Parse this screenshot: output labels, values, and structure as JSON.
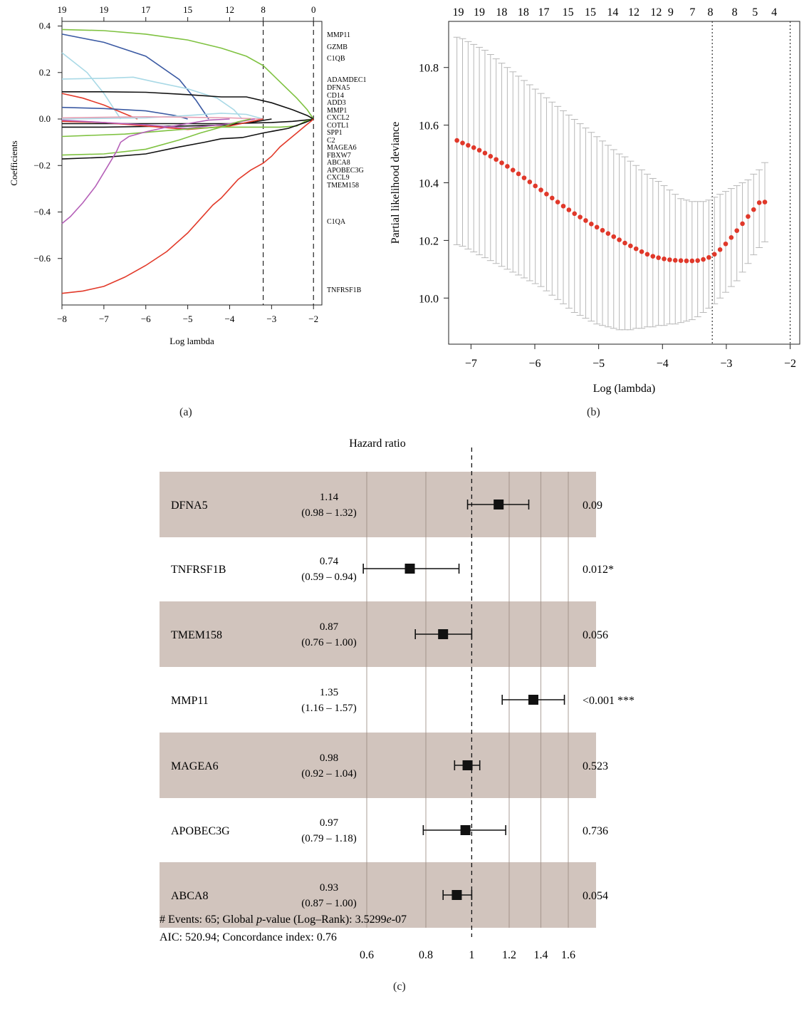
{
  "panel_labels": {
    "a": "(a)",
    "b": "(b)",
    "c": "(c)"
  },
  "colors": {
    "green": "#7fc241",
    "navy": "#3b5aa3",
    "lightblue": "#a9d9e6",
    "black": "#111111",
    "red": "#e23a2a",
    "purple": "#b560b8",
    "pink": "#e8a0b4",
    "cv_point": "#e0382a",
    "cv_bar": "#b8b8b8",
    "forest_band": "#d1c4bd"
  },
  "chart_data": [
    {
      "type": "line",
      "panel": "a",
      "xlabel": "Log lambda",
      "ylabel": "Coefficients",
      "xlim": [
        -8,
        -1.8
      ],
      "ylim": [
        -0.8,
        0.42
      ],
      "x_ticks": [
        "-8",
        "-7",
        "-6",
        "-5",
        "-4",
        "-3",
        "-2"
      ],
      "y_ticks": [
        "0.4",
        "0.2",
        "0.0",
        "-0.2",
        "-0.4",
        "-0.6"
      ],
      "top_tick_labels": [
        "19",
        "19",
        "17",
        "15",
        "12",
        "8",
        "0"
      ],
      "top_tick_x": [
        -8,
        -7,
        -6,
        -5,
        -4,
        -3.2,
        -2
      ],
      "vlines": [
        -3.2,
        -2
      ],
      "end_labels": [
        "MMP11",
        "GZMB",
        "C1QB",
        "ADAMDEC1",
        "DFNA5",
        "CD14",
        "ADD3",
        "MMP1",
        "CXCL2",
        "COTL1",
        "SPP1",
        "C2",
        "MAGEA6",
        "FBXW7",
        "ABCA8",
        "APOBEC3G",
        "CXCL9",
        "TMEM158",
        "C1QA",
        "TNFRSF1B"
      ],
      "series": [
        {
          "color_key": "green",
          "x": [
            -8,
            -7,
            -6,
            -5,
            -4.2,
            -3.6,
            -3.2,
            -2.8,
            -2.4,
            -2.15,
            -2
          ],
          "values": [
            0.385,
            0.38,
            0.365,
            0.34,
            0.305,
            0.27,
            0.23,
            0.16,
            0.09,
            0.04,
            0.0
          ]
        },
        {
          "color_key": "navy",
          "x": [
            -8,
            -7,
            -6,
            -5.2,
            -4.8,
            -4.5
          ],
          "values": [
            0.365,
            0.33,
            0.27,
            0.17,
            0.08,
            0.0
          ]
        },
        {
          "color_key": "lightblue",
          "x": [
            -8,
            -7.4,
            -7,
            -6.6
          ],
          "values": [
            0.285,
            0.2,
            0.11,
            0.0
          ]
        },
        {
          "color_key": "lightblue",
          "x": [
            -8,
            -7,
            -6.3,
            -5.8,
            -5,
            -4.3,
            -3.9,
            -3.7
          ],
          "values": [
            0.172,
            0.175,
            0.18,
            0.16,
            0.13,
            0.09,
            0.04,
            0.0
          ]
        },
        {
          "color_key": "black",
          "x": [
            -8,
            -7,
            -6,
            -5,
            -4.2,
            -3.6,
            -3.0,
            -2.5,
            -2.15,
            -2
          ],
          "values": [
            0.117,
            0.117,
            0.115,
            0.105,
            0.095,
            0.095,
            0.07,
            0.04,
            0.015,
            0.0
          ]
        },
        {
          "color_key": "red",
          "x": [
            -8,
            -7.5,
            -7,
            -6.6,
            -6.2
          ],
          "values": [
            0.11,
            0.09,
            0.06,
            0.03,
            0.0
          ]
        },
        {
          "color_key": "navy",
          "x": [
            -8,
            -7,
            -6,
            -5.3,
            -5
          ],
          "values": [
            0.05,
            0.045,
            0.035,
            0.015,
            0.0
          ]
        },
        {
          "color_key": "lightblue",
          "x": [
            -8,
            -6,
            -5,
            -4.2,
            -3.6,
            -3.2
          ],
          "values": [
            0.0,
            0.005,
            0.015,
            0.025,
            0.02,
            0.0
          ]
        },
        {
          "color_key": "pink",
          "x": [
            -8,
            -6,
            -4,
            -3.2
          ],
          "values": [
            0.005,
            0.01,
            0.005,
            0.0
          ]
        },
        {
          "color_key": "black",
          "x": [
            -8,
            -6,
            -4,
            -3,
            -2.5,
            -2.2,
            -2
          ],
          "values": [
            -0.02,
            -0.02,
            -0.02,
            -0.015,
            -0.01,
            -0.005,
            0.0
          ]
        },
        {
          "color_key": "black",
          "x": [
            -8,
            -7,
            -6,
            -5,
            -4,
            -3.4,
            -3
          ],
          "values": [
            -0.035,
            -0.035,
            -0.032,
            -0.03,
            -0.025,
            -0.012,
            0.0
          ]
        },
        {
          "color_key": "red",
          "x": [
            -8,
            -7,
            -6,
            -5,
            -4,
            -3.2
          ],
          "values": [
            -0.01,
            -0.015,
            -0.03,
            -0.045,
            -0.03,
            0.0
          ]
        },
        {
          "color_key": "purple",
          "x": [
            -8,
            -7,
            -6,
            -5,
            -4,
            -3.4
          ],
          "values": [
            -0.005,
            -0.015,
            -0.025,
            -0.04,
            -0.02,
            0.0
          ]
        },
        {
          "color_key": "green",
          "x": [
            -8,
            -6.5,
            -5.5,
            -4.8,
            -4.2,
            -3.6,
            -3.2,
            -2.8,
            -2.4,
            -2.2,
            -2
          ],
          "values": [
            -0.075,
            -0.065,
            -0.05,
            -0.04,
            -0.035,
            -0.035,
            -0.035,
            -0.035,
            -0.03,
            -0.01,
            0.0
          ]
        },
        {
          "color_key": "green",
          "x": [
            -8,
            -7,
            -6,
            -5.2,
            -4.7,
            -4.2,
            -3.8,
            -3.5
          ],
          "values": [
            -0.155,
            -0.15,
            -0.13,
            -0.09,
            -0.06,
            -0.035,
            -0.012,
            0.0
          ]
        },
        {
          "color_key": "black",
          "x": [
            -8,
            -7,
            -6,
            -5.2,
            -4.6,
            -4.2,
            -3.7,
            -3.2,
            -2.6,
            -2.2,
            -2
          ],
          "values": [
            -0.172,
            -0.165,
            -0.15,
            -0.12,
            -0.1,
            -0.085,
            -0.08,
            -0.06,
            -0.04,
            -0.015,
            0.0
          ]
        },
        {
          "color_key": "purple",
          "x": [
            -8,
            -7.8,
            -7.5,
            -7.2,
            -6.9,
            -6.7,
            -6.6,
            -6.4,
            -6.0,
            -5.5,
            -5.0,
            -4.5,
            -4.0
          ],
          "values": [
            -0.45,
            -0.42,
            -0.36,
            -0.29,
            -0.2,
            -0.14,
            -0.1,
            -0.075,
            -0.055,
            -0.035,
            -0.02,
            -0.005,
            0.0
          ]
        },
        {
          "color_key": "red",
          "x": [
            -8,
            -7.5,
            -7,
            -6.5,
            -6,
            -5.5,
            -5,
            -4.7,
            -4.4,
            -4.2,
            -4.0,
            -3.8,
            -3.5,
            -3.2,
            -3.0,
            -2.8,
            -2.6,
            -2.4,
            -2.2,
            -2.05,
            -2
          ],
          "values": [
            -0.75,
            -0.74,
            -0.72,
            -0.68,
            -0.63,
            -0.57,
            -0.49,
            -0.43,
            -0.37,
            -0.34,
            -0.3,
            -0.26,
            -0.22,
            -0.19,
            -0.16,
            -0.12,
            -0.09,
            -0.06,
            -0.03,
            -0.008,
            0.0
          ]
        }
      ]
    },
    {
      "type": "scatter",
      "panel": "b",
      "xlabel": "Log (lambda)",
      "ylabel": "Partial likelihood deviance",
      "xlim": [
        -7.35,
        -1.85
      ],
      "ylim": [
        9.84,
        10.96
      ],
      "x_ticks": [
        "−7",
        "−6",
        "−5",
        "−4",
        "−3",
        "−2"
      ],
      "y_ticks": [
        "10.0",
        "10.2",
        "10.4",
        "10.6",
        "10.8"
      ],
      "top_tick_labels": [
        "19",
        "19",
        "18",
        "18",
        "17",
        "15",
        "15",
        "14",
        "12",
        "12",
        "9",
        "7",
        "8",
        "8",
        "5",
        "4"
      ],
      "top_tick_x": [
        -7.2,
        -6.87,
        -6.52,
        -6.18,
        -5.86,
        -5.48,
        -5.13,
        -4.78,
        -4.45,
        -4.1,
        -3.87,
        -3.53,
        -3.25,
        -2.87,
        -2.55,
        -2.25
      ],
      "vlines": [
        -3.22,
        -2.0
      ],
      "x_start": -7.22,
      "x_step": 0.0877,
      "center": [
        10.547,
        10.538,
        10.53,
        10.522,
        10.513,
        10.503,
        10.492,
        10.481,
        10.469,
        10.457,
        10.444,
        10.431,
        10.417,
        10.403,
        10.389,
        10.375,
        10.361,
        10.347,
        10.333,
        10.319,
        10.306,
        10.293,
        10.281,
        10.269,
        10.257,
        10.246,
        10.235,
        10.224,
        10.213,
        10.202,
        10.191,
        10.181,
        10.171,
        10.161,
        10.152,
        10.145,
        10.14,
        10.136,
        10.133,
        10.131,
        10.13,
        10.129,
        10.129,
        10.13,
        10.134,
        10.141,
        10.152,
        10.168,
        10.188,
        10.21,
        10.234,
        10.258,
        10.283,
        10.307,
        10.331,
        10.333
      ],
      "upper": [
        10.905,
        10.9,
        10.89,
        10.88,
        10.87,
        10.86,
        10.845,
        10.83,
        10.815,
        10.8,
        10.785,
        10.77,
        10.755,
        10.74,
        10.725,
        10.71,
        10.695,
        10.68,
        10.665,
        10.65,
        10.635,
        10.62,
        10.605,
        10.59,
        10.575,
        10.56,
        10.545,
        10.53,
        10.515,
        10.5,
        10.49,
        10.475,
        10.46,
        10.445,
        10.43,
        10.415,
        10.405,
        10.39,
        10.375,
        10.36,
        10.345,
        10.34,
        10.335,
        10.335,
        10.335,
        10.34,
        10.35,
        10.36,
        10.37,
        10.38,
        10.39,
        10.4,
        10.41,
        10.43,
        10.445,
        10.47
      ],
      "lower": [
        10.185,
        10.18,
        10.17,
        10.16,
        10.15,
        10.14,
        10.13,
        10.12,
        10.11,
        10.1,
        10.09,
        10.08,
        10.07,
        10.06,
        10.05,
        10.04,
        10.025,
        10.01,
        9.995,
        9.98,
        9.965,
        9.95,
        9.94,
        9.93,
        9.92,
        9.91,
        9.905,
        9.9,
        9.895,
        9.89,
        9.89,
        9.89,
        9.895,
        9.895,
        9.9,
        9.9,
        9.905,
        9.905,
        9.91,
        9.91,
        9.915,
        9.92,
        9.925,
        9.935,
        9.95,
        9.965,
        9.98,
        10.0,
        10.02,
        10.04,
        10.06,
        10.09,
        10.12,
        10.15,
        10.175,
        10.195
      ]
    },
    {
      "type": "forest",
      "panel": "c",
      "title": "Hazard ratio",
      "xlim": [
        0.6,
        1.75
      ],
      "log_scale": true,
      "x_ticks": [
        0.6,
        0.8,
        1,
        1.2,
        1.4,
        1.6
      ],
      "x_tick_labels": [
        "0.6",
        "0.8",
        "1",
        "1.2",
        "1.4",
        "1.6"
      ],
      "reference": 1,
      "rows": [
        {
          "name": "DFNA5",
          "hr": 1.14,
          "lo": 0.98,
          "hi": 1.32,
          "hr_text": "1.14",
          "ci_text": "(0.98 – 1.32)",
          "p_text": "0.09",
          "shaded": true
        },
        {
          "name": "TNFRSF1B",
          "hr": 0.74,
          "lo": 0.59,
          "hi": 0.94,
          "hr_text": "0.74",
          "ci_text": "(0.59 – 0.94)",
          "p_text": "0.012*",
          "shaded": false
        },
        {
          "name": "TMEM158",
          "hr": 0.87,
          "lo": 0.76,
          "hi": 1.0,
          "hr_text": "0.87",
          "ci_text": "(0.76 – 1.00)",
          "p_text": "0.056",
          "shaded": true
        },
        {
          "name": "MMP11",
          "hr": 1.35,
          "lo": 1.16,
          "hi": 1.57,
          "hr_text": "1.35",
          "ci_text": "(1.16 – 1.57)",
          "p_text": "<0.001 ***",
          "shaded": false
        },
        {
          "name": "MAGEA6",
          "hr": 0.98,
          "lo": 0.92,
          "hi": 1.04,
          "hr_text": "0.98",
          "ci_text": "(0.92 – 1.04)",
          "p_text": "0.523",
          "shaded": true
        },
        {
          "name": "APOBEC3G",
          "hr": 0.97,
          "lo": 0.79,
          "hi": 1.18,
          "hr_text": "0.97",
          "ci_text": "(0.79 – 1.18)",
          "p_text": "0.736",
          "shaded": false
        },
        {
          "name": "ABCA8",
          "hr": 0.93,
          "lo": 0.87,
          "hi": 1.0,
          "hr_text": "0.93",
          "ci_text": "(0.87 – 1.00)",
          "p_text": "0.054",
          "shaded": true
        }
      ],
      "footer": {
        "line1_prefix": "# Events: 65; Global ",
        "line1_italic": "p",
        "line1_suffix": "-value (Log–Rank): 3.5299",
        "line1_e": "e",
        "line1_exp": "-07",
        "line2": "AIC: 520.94; Concordance index: 0.76"
      }
    }
  ]
}
